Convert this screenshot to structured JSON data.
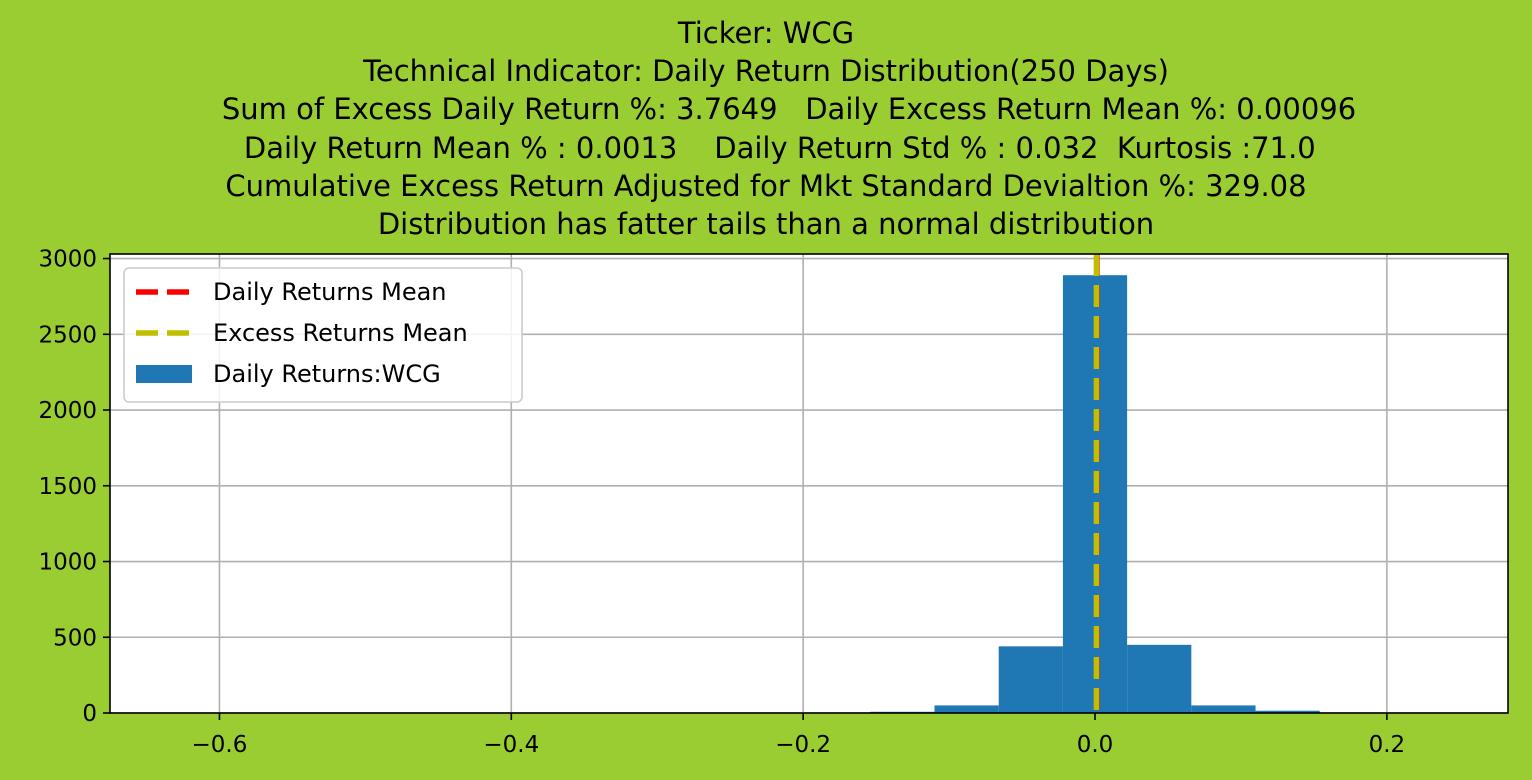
{
  "chart_data": {
    "type": "bar",
    "title_lines": [
      "Ticker: WCG",
      "Technical Indicator: Daily Return Distribution(250 Days)",
      "     Sum of Excess Daily Return %: 3.7649   Daily Excess Return Mean %: 0.00096",
      "   Daily Return Mean % : 0.0013    Daily Return Std % : 0.032  Kurtosis :71.0",
      "Cumulative Excess Return Adjusted for Mkt Standard Devialtion %: 329.08",
      "Distribution has fatter tails than a normal distribution"
    ],
    "xlabel": "",
    "ylabel": "",
    "xlim": [
      -0.675,
      0.283
    ],
    "ylim": [
      0,
      3030
    ],
    "xticks": [
      -0.6,
      -0.4,
      -0.2,
      0.0,
      0.2
    ],
    "xtick_labels": [
      "−0.6",
      "−0.4",
      "−0.2",
      "0.0",
      "0.2"
    ],
    "yticks": [
      0,
      500,
      1000,
      1500,
      2000,
      2500,
      3000
    ],
    "ytick_labels": [
      "0",
      "500",
      "1000",
      "1500",
      "2000",
      "2500",
      "3000"
    ],
    "grid": true,
    "legend_position": "upper-left",
    "bar_color": "#1f77b4",
    "bins": [
      {
        "x0": -0.154,
        "x1": -0.11,
        "count": 8
      },
      {
        "x0": -0.11,
        "x1": -0.066,
        "count": 50
      },
      {
        "x0": -0.066,
        "x1": -0.022,
        "count": 440
      },
      {
        "x0": -0.022,
        "x1": 0.022,
        "count": 2890
      },
      {
        "x0": 0.022,
        "x1": 0.066,
        "count": 450
      },
      {
        "x0": 0.066,
        "x1": 0.11,
        "count": 50
      },
      {
        "x0": 0.11,
        "x1": 0.154,
        "count": 15
      }
    ],
    "vlines": [
      {
        "name": "Daily Returns Mean",
        "x": 0.0013,
        "color": "#ff0000"
      },
      {
        "name": "Excess Returns Mean",
        "x": 0.00096,
        "color": "#bfbf00"
      }
    ],
    "legend": [
      {
        "label": "Daily Returns Mean",
        "kind": "line",
        "color": "#ff0000"
      },
      {
        "label": "Excess Returns Mean",
        "kind": "line",
        "color": "#bfbf00"
      },
      {
        "label": "Daily Returns:WCG",
        "kind": "patch",
        "color": "#1f77b4"
      }
    ]
  }
}
